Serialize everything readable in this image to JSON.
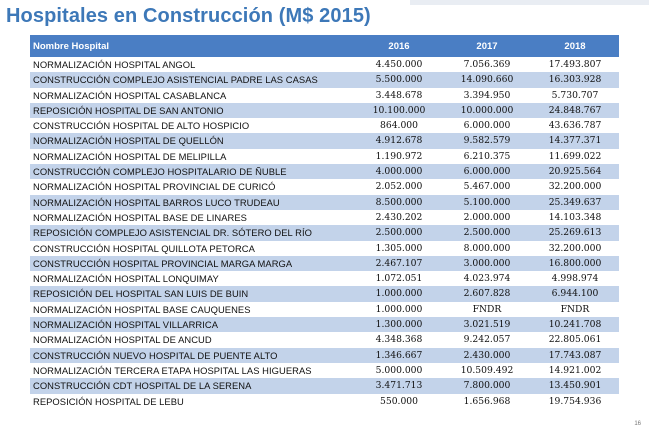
{
  "title": "Hospitales en Construcción (M$ 2015)",
  "header": {
    "name": "Nombre Hospital",
    "y2016": "2016",
    "y2017": "2017",
    "y2018": "2018"
  },
  "rows": [
    {
      "name": "NORMALIZACIÓN HOSPITAL ANGOL",
      "y2016": "4.450.000",
      "y2017": "7.056.369",
      "y2018": "17.493.807"
    },
    {
      "name": "CONSTRUCCIÓN COMPLEJO ASISTENCIAL PADRE LAS CASAS",
      "y2016": "5.500.000",
      "y2017": "14.090.660",
      "y2018": "16.303.928"
    },
    {
      "name": "NORMALIZACIÓN HOSPITAL CASABLANCA",
      "y2016": "3.448.678",
      "y2017": "3.394.950",
      "y2018": "5.730.707"
    },
    {
      "name": "REPOSICIÓN HOSPITAL DE SAN ANTONIO",
      "y2016": "10.100.000",
      "y2017": "10.000.000",
      "y2018": "24.848.767"
    },
    {
      "name": "CONSTRUCCIÓN HOSPITAL DE ALTO HOSPICIO",
      "y2016": "864.000",
      "y2017": "6.000.000",
      "y2018": "43.636.787"
    },
    {
      "name": "NORMALIZACIÓN HOSPITAL DE QUELLÓN",
      "y2016": "4.912.678",
      "y2017": "9.582.579",
      "y2018": "14.377.371"
    },
    {
      "name": "NORMALIZACIÓN HOSPITAL DE MELIPILLA",
      "y2016": "1.190.972",
      "y2017": "6.210.375",
      "y2018": "11.699.022"
    },
    {
      "name": "CONSTRUCCIÓN COMPLEJO HOSPITALARIO DE ÑUBLE",
      "y2016": "4.000.000",
      "y2017": "6.000.000",
      "y2018": "20.925.564"
    },
    {
      "name": "NORMALIZACIÓN HOSPITAL PROVINCIAL DE CURICÓ",
      "y2016": "2.052.000",
      "y2017": "5.467.000",
      "y2018": "32.200.000"
    },
    {
      "name": "NORMALIZACIÓN HOSPITAL BARROS LUCO TRUDEAU",
      "y2016": "8.500.000",
      "y2017": "5.100.000",
      "y2018": "25.349.637"
    },
    {
      "name": "NORMALIZACIÓN HOSPITAL BASE DE LINARES",
      "y2016": "2.430.202",
      "y2017": "2.000.000",
      "y2018": "14.103.348"
    },
    {
      "name": "REPOSICIÓN COMPLEJO ASISTENCIAL DR. SÓTERO DEL RÍO",
      "y2016": "2.500.000",
      "y2017": "2.500.000",
      "y2018": "25.269.613"
    },
    {
      "name": "CONSTRUCCIÓN HOSPITAL QUILLOTA PETORCA",
      "y2016": "1.305.000",
      "y2017": "8.000.000",
      "y2018": "32.200.000"
    },
    {
      "name": "CONSTRUCCIÓN HOSPITAL PROVINCIAL MARGA MARGA",
      "y2016": "2.467.107",
      "y2017": "3.000.000",
      "y2018": "16.800.000"
    },
    {
      "name": "NORMALIZACIÓN HOSPITAL LONQUIMAY",
      "y2016": "1.072.051",
      "y2017": "4.023.974",
      "y2018": "4.998.974"
    },
    {
      "name": "REPOSICIÓN DEL HOSPITAL SAN LUIS DE BUIN",
      "y2016": "1.000.000",
      "y2017": "2.607.828",
      "y2018": "6.944.100"
    },
    {
      "name": "NORMALIZACIÓN HOSPITAL BASE CAUQUENES",
      "y2016": "1.000.000",
      "y2017": "FNDR",
      "y2018": "FNDR"
    },
    {
      "name": "NORMALIZACIÓN HOSPITAL VILLARRICA",
      "y2016": "1.300.000",
      "y2017": "3.021.519",
      "y2018": "10.241.708"
    },
    {
      "name": "NORMALIZACIÓN HOSPITAL DE ANCUD",
      "y2016": "4.348.368",
      "y2017": "9.242.057",
      "y2018": "22.805.061"
    },
    {
      "name": "CONSTRUCCIÓN NUEVO HOSPITAL DE PUENTE ALTO",
      "y2016": "1.346.667",
      "y2017": "2.430.000",
      "y2018": "17.743.087"
    },
    {
      "name": "NORMALIZACIÓN TERCERA ETAPA  HOSPITAL LAS HIGUERAS",
      "y2016": "5.000.000",
      "y2017": "10.509.492",
      "y2018": "14.921.002"
    },
    {
      "name": "CONSTRUCCIÓN CDT HOSPITAL DE LA SERENA",
      "y2016": "3.471.713",
      "y2017": "7.800.000",
      "y2018": "13.450.901"
    },
    {
      "name": "REPOSICIÓN HOSPITAL DE LEBU",
      "y2016": "550.000",
      "y2017": "1.656.968",
      "y2018": "19.754.936"
    }
  ],
  "page_number": "16"
}
